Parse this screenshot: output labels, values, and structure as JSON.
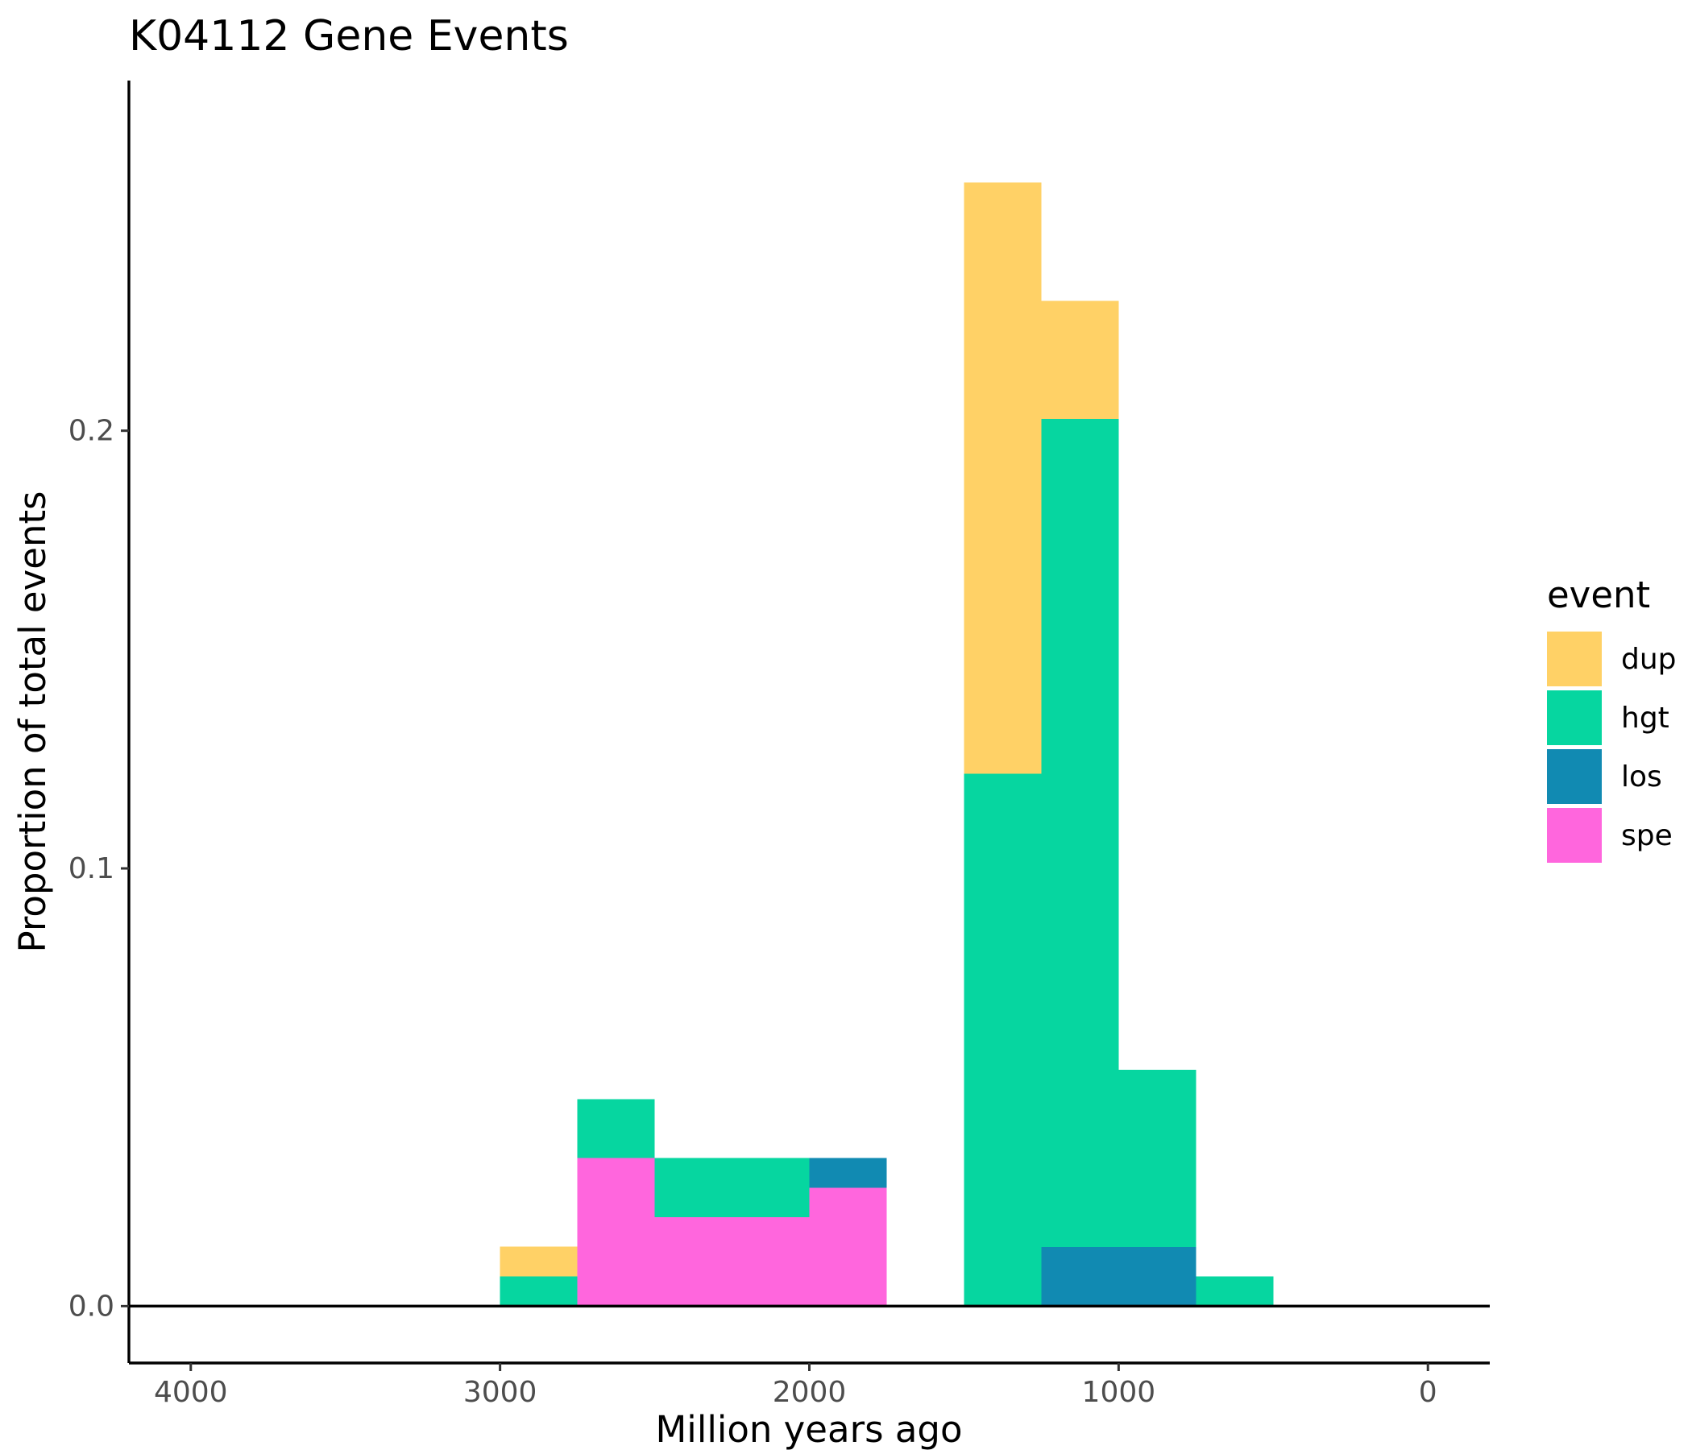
{
  "chart_data": {
    "type": "bar",
    "stacked": true,
    "title": "K04112 Gene Events",
    "xlabel": "Million years ago",
    "ylabel": "Proportion of total events",
    "x_reversed": true,
    "xlim": [
      4200,
      -200
    ],
    "ylim": [
      -0.013,
      0.28
    ],
    "x_ticks": [
      4000,
      3000,
      2000,
      1000,
      0
    ],
    "x_tick_labels": [
      "4000",
      "3000",
      "2000",
      "1000",
      "0"
    ],
    "y_ticks": [
      0.0,
      0.1,
      0.2
    ],
    "y_tick_labels": [
      "0.0",
      "0.1",
      "0.2"
    ],
    "bin_width": 250,
    "bins": [
      {
        "x_start": 3000,
        "x_end": 2750
      },
      {
        "x_start": 2750,
        "x_end": 2500
      },
      {
        "x_start": 2500,
        "x_end": 2250
      },
      {
        "x_start": 2250,
        "x_end": 2000
      },
      {
        "x_start": 2000,
        "x_end": 1750
      },
      {
        "x_start": 1750,
        "x_end": 1500
      },
      {
        "x_start": 1500,
        "x_end": 1250
      },
      {
        "x_start": 1250,
        "x_end": 1000
      },
      {
        "x_start": 1000,
        "x_end": 750
      },
      {
        "x_start": 750,
        "x_end": 500
      }
    ],
    "series": [
      {
        "name": "dup",
        "color": "#FFD166",
        "values": [
          0.0068,
          0,
          0,
          0,
          0,
          0,
          0.1351,
          0.027,
          0,
          0
        ]
      },
      {
        "name": "hgt",
        "color": "#06D6A0",
        "values": [
          0.0068,
          0.0135,
          0.0135,
          0.0135,
          0,
          0,
          0.1216,
          0.1892,
          0.0405,
          0.0068
        ]
      },
      {
        "name": "los",
        "color": "#118AB2",
        "values": [
          0,
          0,
          0,
          0,
          0.0068,
          0,
          0,
          0.0135,
          0.0135,
          0
        ]
      },
      {
        "name": "spe",
        "color": "#FF66DD",
        "values": [
          0,
          0.0338,
          0.0203,
          0.0203,
          0.027,
          0,
          0,
          0,
          0,
          0
        ]
      }
    ],
    "stack_order_bottom_to_top": [
      "spe",
      "los",
      "hgt",
      "dup"
    ],
    "legend": {
      "title": "event",
      "position": "right",
      "items": [
        "dup",
        "hgt",
        "los",
        "spe"
      ]
    },
    "grid": false
  }
}
